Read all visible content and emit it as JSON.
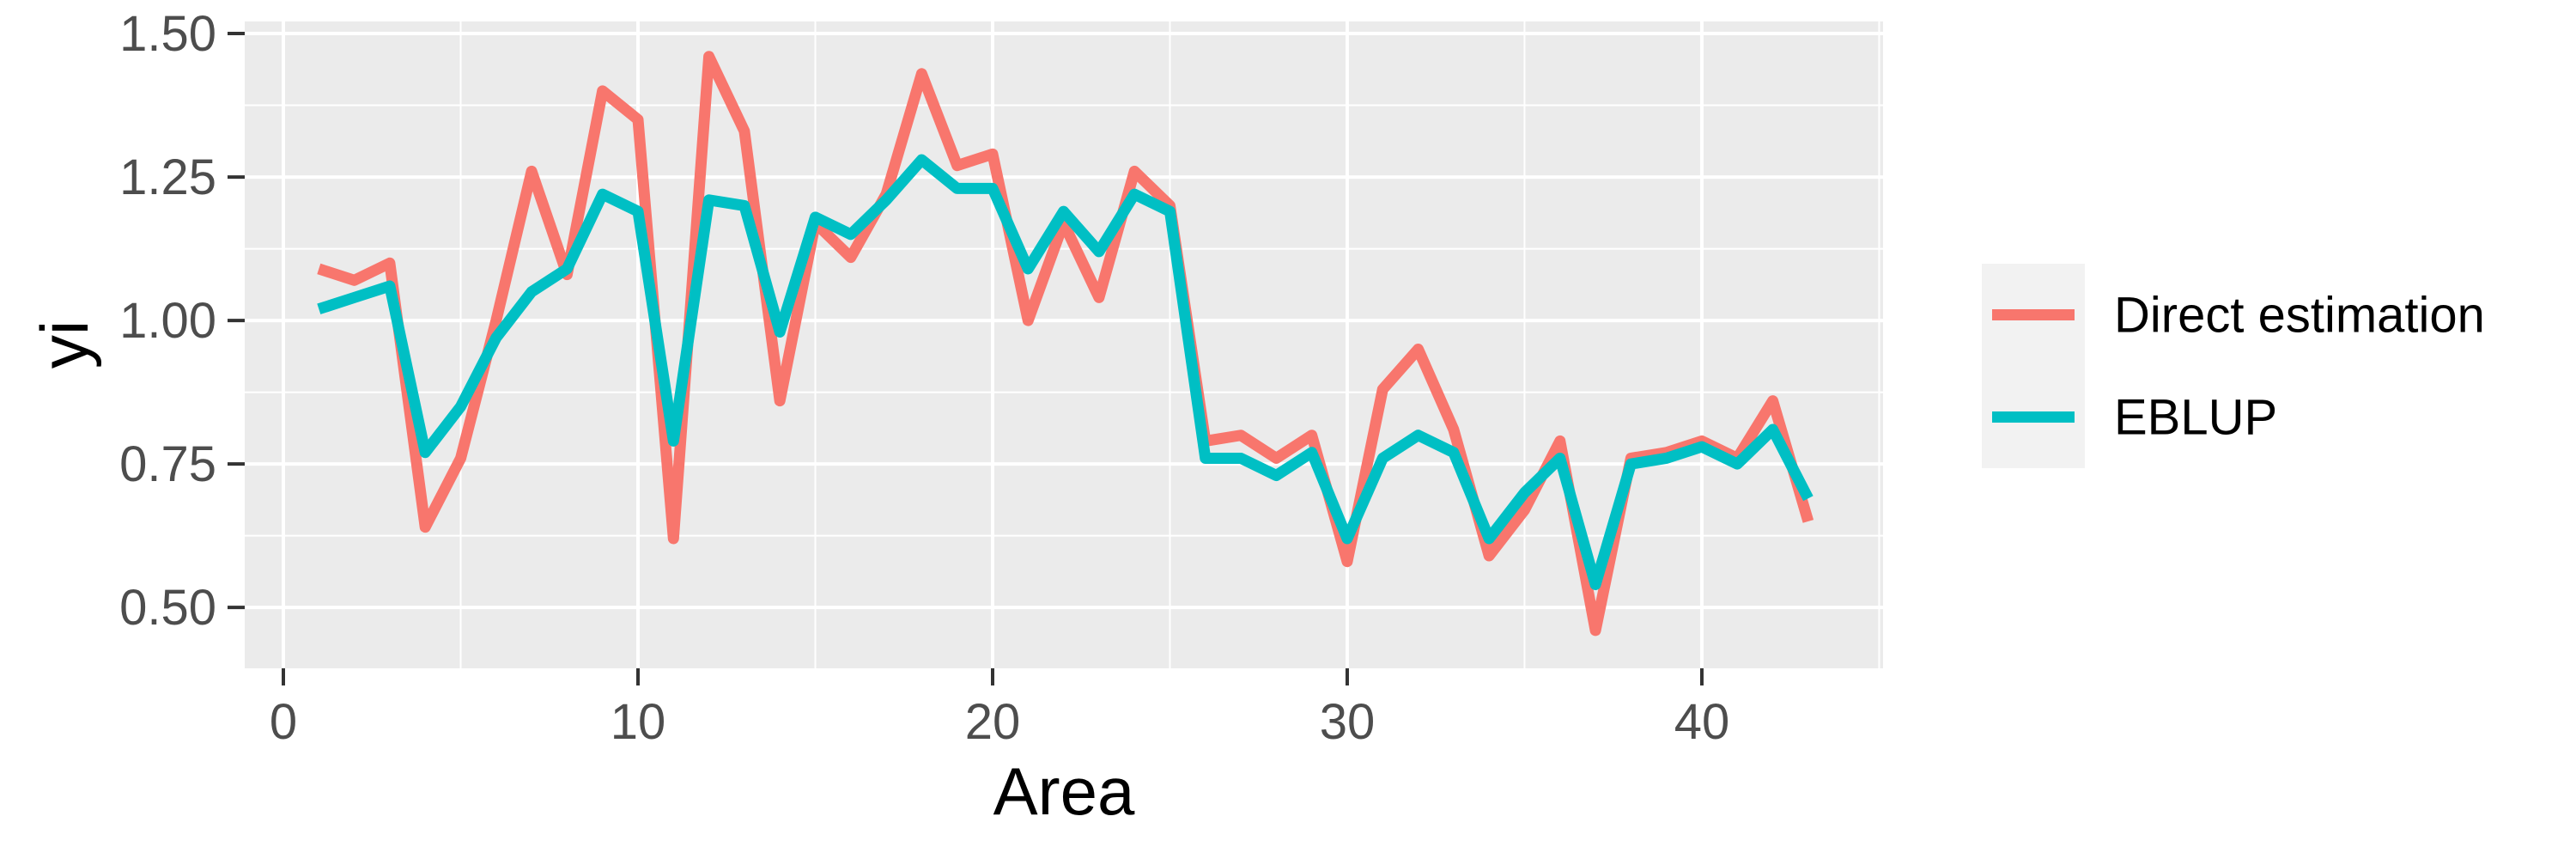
{
  "chart_data": {
    "type": "line",
    "title": "",
    "xlabel": "Area",
    "ylabel": "yi",
    "x": [
      1,
      2,
      3,
      4,
      5,
      6,
      7,
      8,
      9,
      10,
      11,
      12,
      13,
      14,
      15,
      16,
      17,
      18,
      19,
      20,
      21,
      22,
      23,
      24,
      25,
      26,
      27,
      28,
      29,
      30,
      31,
      32,
      33,
      34,
      35,
      36,
      37,
      38,
      39,
      40,
      41,
      42,
      43
    ],
    "series": [
      {
        "name": "Direct estimation",
        "color": "#F8766D",
        "values": [
          1.09,
          1.07,
          1.1,
          0.64,
          0.76,
          1.0,
          1.26,
          1.08,
          1.4,
          1.35,
          0.62,
          1.46,
          1.33,
          0.86,
          1.17,
          1.11,
          1.22,
          1.43,
          1.27,
          1.29,
          1.0,
          1.17,
          1.04,
          1.26,
          1.2,
          0.79,
          0.8,
          0.76,
          0.8,
          0.58,
          0.88,
          0.95,
          0.81,
          0.59,
          0.67,
          0.79,
          0.46,
          0.76,
          0.77,
          0.79,
          0.76,
          0.86,
          0.65
        ]
      },
      {
        "name": "EBLUP",
        "color": "#00BFC4",
        "values": [
          1.02,
          1.04,
          1.06,
          0.77,
          0.85,
          0.97,
          1.05,
          1.09,
          1.22,
          1.19,
          0.79,
          1.21,
          1.2,
          0.98,
          1.18,
          1.15,
          1.21,
          1.28,
          1.23,
          1.23,
          1.09,
          1.19,
          1.12,
          1.22,
          1.19,
          0.76,
          0.76,
          0.73,
          0.77,
          0.62,
          0.76,
          0.8,
          0.77,
          0.62,
          0.7,
          0.76,
          0.54,
          0.75,
          0.76,
          0.78,
          0.75,
          0.81,
          0.69
        ]
      }
    ],
    "xlim": [
      -1.09,
      45.11
    ],
    "ylim": [
      0.394,
      1.521
    ],
    "x_tick_labels": [
      "0",
      "10",
      "20",
      "30",
      "40"
    ],
    "x_major_ticks": [
      0,
      10,
      20,
      30,
      40
    ],
    "x_minor_ticks": [
      5,
      15,
      25,
      35,
      45
    ],
    "y_tick_labels": [
      "0.50",
      "0.75",
      "1.00",
      "1.25",
      "1.50"
    ],
    "y_major_ticks": [
      0.5,
      0.75,
      1.0,
      1.25,
      1.5
    ],
    "y_minor_ticks": [
      0.625,
      0.875,
      1.125,
      1.375
    ],
    "grid": "major and minor white gridlines on grey panel",
    "legend_position": "right"
  },
  "legend": {
    "items": [
      {
        "label": "Direct estimation",
        "color": "#F8766D"
      },
      {
        "label": "EBLUP",
        "color": "#00BFC4"
      }
    ]
  },
  "theme": {
    "background": "#FFFFFF",
    "panel_fill": "#EBEBEB",
    "grid_color": "#FFFFFF",
    "tick_color": "#333333",
    "tick_label_color": "#4D4D4D",
    "axis_title_color": "#000000",
    "legend_text_color": "#000000",
    "legend_key_fill": "#F2F2F2"
  }
}
